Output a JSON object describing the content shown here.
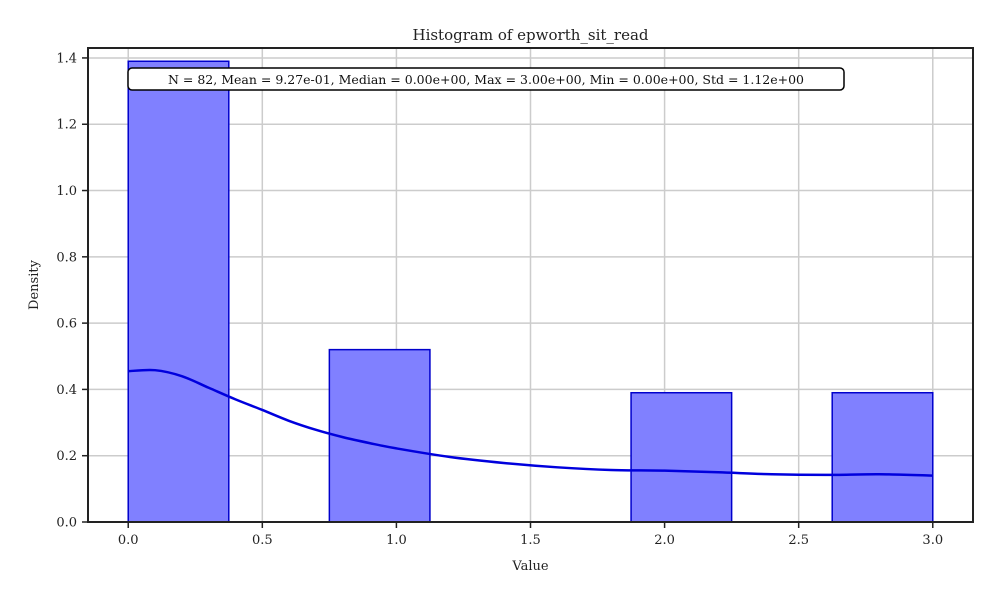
{
  "chart_data": {
    "type": "bar",
    "title": "Histogram of epworth_sit_read",
    "xlabel": "Value",
    "ylabel": "Density",
    "xlim": [
      -0.15,
      3.15
    ],
    "ylim": [
      0,
      1.43
    ],
    "xticks": [
      0.0,
      0.5,
      1.0,
      1.5,
      2.0,
      2.5,
      3.0
    ],
    "xtick_labels": [
      "0.0",
      "0.5",
      "1.0",
      "1.5",
      "2.0",
      "2.5",
      "3.0"
    ],
    "yticks": [
      0.0,
      0.2,
      0.4,
      0.6,
      0.8,
      1.0,
      1.2,
      1.4
    ],
    "ytick_labels": [
      "0.0",
      "0.2",
      "0.4",
      "0.6",
      "0.8",
      "1.0",
      "1.2",
      "1.4"
    ],
    "grid": true,
    "bins": [
      {
        "x0": 0.0,
        "x1": 0.375,
        "density": 1.39
      },
      {
        "x0": 0.75,
        "x1": 1.125,
        "density": 0.52
      },
      {
        "x0": 1.875,
        "x1": 2.25,
        "density": 0.39
      },
      {
        "x0": 2.625,
        "x1": 3.0,
        "density": 0.39
      }
    ],
    "kde": {
      "x": [
        0.0,
        0.1,
        0.2,
        0.3,
        0.4,
        0.5,
        0.6,
        0.7,
        0.8,
        0.9,
        1.0,
        1.2,
        1.4,
        1.6,
        1.8,
        2.0,
        2.2,
        2.4,
        2.6,
        2.8,
        3.0
      ],
      "y": [
        0.455,
        0.458,
        0.44,
        0.405,
        0.37,
        0.338,
        0.305,
        0.278,
        0.256,
        0.238,
        0.222,
        0.196,
        0.178,
        0.165,
        0.157,
        0.155,
        0.15,
        0.144,
        0.142,
        0.144,
        0.14
      ]
    },
    "colors": {
      "bar_fill": "#8080ff",
      "bar_edge": "#0000cc",
      "kde_line": "#0000dd"
    },
    "annotation": "N = 82, Mean = 9.27e-01, Median = 0.00e+00, Max = 3.00e+00, Min = 0.00e+00, Std = 1.12e+00"
  }
}
